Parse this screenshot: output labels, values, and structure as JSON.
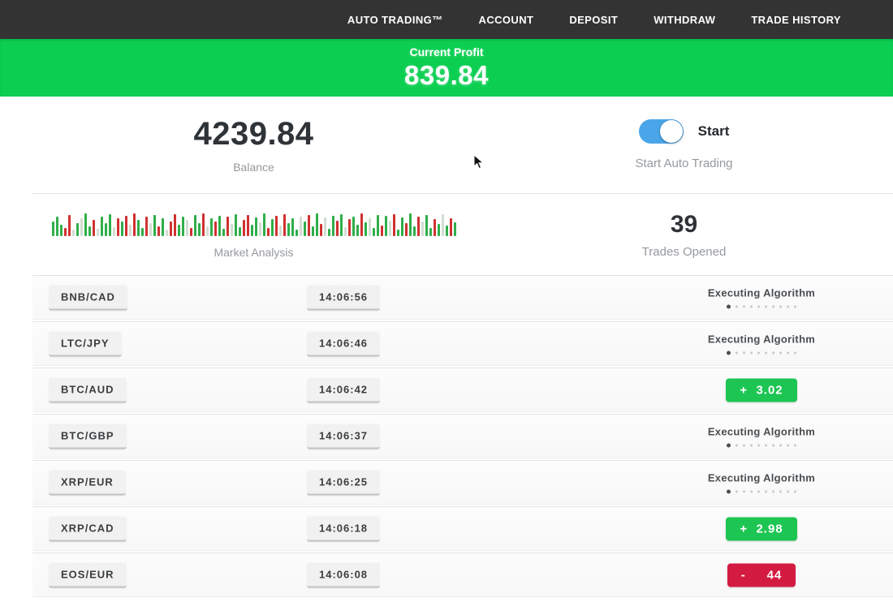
{
  "nav": {
    "items": [
      "AUTO TRADING™",
      "ACCOUNT",
      "DEPOSIT",
      "WITHDRAW",
      "TRADE HISTORY"
    ]
  },
  "profit_banner": {
    "label": "Current Profit",
    "value": "839.84"
  },
  "stats": {
    "balance": {
      "value": "4239.84",
      "label": "Balance"
    },
    "auto_trading": {
      "toggle_label": "Start",
      "label": "Start Auto Trading",
      "toggle_on": true
    },
    "trades_opened": {
      "value": "39",
      "label": "Trades Opened"
    }
  },
  "chart_data": {
    "type": "bar",
    "title": "Market Analysis",
    "xlabel": "",
    "ylabel": "",
    "axes_shown": false,
    "description": "decorative market ticker of thin green/red/pale volume bars",
    "colors": {
      "g": "#2fae4a",
      "r": "#cf3130",
      "p": "#d2ddd2"
    },
    "bars": [
      [
        18,
        "g"
      ],
      [
        24,
        "g"
      ],
      [
        14,
        "g"
      ],
      [
        10,
        "r"
      ],
      [
        26,
        "r"
      ],
      [
        8,
        "p"
      ],
      [
        16,
        "g"
      ],
      [
        22,
        "p"
      ],
      [
        28,
        "g"
      ],
      [
        12,
        "g"
      ],
      [
        20,
        "r"
      ],
      [
        9,
        "p"
      ],
      [
        24,
        "g"
      ],
      [
        16,
        "g"
      ],
      [
        27,
        "g"
      ],
      [
        11,
        "p"
      ],
      [
        22,
        "r"
      ],
      [
        18,
        "g"
      ],
      [
        25,
        "r"
      ],
      [
        14,
        "p"
      ],
      [
        28,
        "r"
      ],
      [
        20,
        "g"
      ],
      [
        10,
        "g"
      ],
      [
        24,
        "r"
      ],
      [
        16,
        "p"
      ],
      [
        26,
        "g"
      ],
      [
        12,
        "r"
      ],
      [
        22,
        "g"
      ],
      [
        8,
        "p"
      ],
      [
        18,
        "r"
      ],
      [
        27,
        "r"
      ],
      [
        14,
        "g"
      ],
      [
        24,
        "g"
      ],
      [
        20,
        "p"
      ],
      [
        10,
        "r"
      ],
      [
        26,
        "g"
      ],
      [
        16,
        "g"
      ],
      [
        28,
        "r"
      ],
      [
        12,
        "p"
      ],
      [
        22,
        "g"
      ],
      [
        18,
        "r"
      ],
      [
        25,
        "g"
      ],
      [
        9,
        "g"
      ],
      [
        24,
        "r"
      ],
      [
        15,
        "p"
      ],
      [
        27,
        "g"
      ],
      [
        11,
        "g"
      ],
      [
        20,
        "r"
      ],
      [
        26,
        "r"
      ],
      [
        14,
        "g"
      ],
      [
        23,
        "g"
      ],
      [
        17,
        "p"
      ],
      [
        28,
        "g"
      ],
      [
        10,
        "r"
      ],
      [
        21,
        "g"
      ],
      [
        25,
        "r"
      ],
      [
        13,
        "p"
      ],
      [
        27,
        "r"
      ],
      [
        16,
        "g"
      ],
      [
        22,
        "g"
      ],
      [
        8,
        "g"
      ],
      [
        24,
        "p"
      ],
      [
        18,
        "g"
      ],
      [
        26,
        "r"
      ],
      [
        12,
        "g"
      ],
      [
        28,
        "g"
      ],
      [
        15,
        "r"
      ],
      [
        23,
        "p"
      ],
      [
        9,
        "g"
      ],
      [
        25,
        "g"
      ],
      [
        19,
        "r"
      ],
      [
        27,
        "g"
      ],
      [
        11,
        "p"
      ],
      [
        21,
        "r"
      ],
      [
        24,
        "g"
      ],
      [
        14,
        "g"
      ],
      [
        28,
        "r"
      ],
      [
        17,
        "g"
      ],
      [
        22,
        "p"
      ],
      [
        10,
        "g"
      ],
      [
        26,
        "g"
      ],
      [
        13,
        "r"
      ],
      [
        25,
        "g"
      ],
      [
        19,
        "p"
      ],
      [
        27,
        "r"
      ],
      [
        8,
        "g"
      ],
      [
        23,
        "g"
      ],
      [
        16,
        "r"
      ],
      [
        28,
        "g"
      ],
      [
        12,
        "g"
      ],
      [
        24,
        "r"
      ],
      [
        18,
        "p"
      ],
      [
        26,
        "g"
      ],
      [
        10,
        "g"
      ],
      [
        21,
        "r"
      ],
      [
        15,
        "g"
      ],
      [
        27,
        "p"
      ],
      [
        13,
        "g"
      ],
      [
        22,
        "r"
      ],
      [
        17,
        "g"
      ]
    ]
  },
  "trades": {
    "executing_label": "Executing Algorithm",
    "rows": [
      {
        "pair": "BNB/CAD",
        "time": "14:06:56",
        "status": "executing",
        "result": ""
      },
      {
        "pair": "LTC/JPY",
        "time": "14:06:46",
        "status": "executing",
        "result": ""
      },
      {
        "pair": "BTC/AUD",
        "time": "14:06:42",
        "status": "profit",
        "result": "+  3.02"
      },
      {
        "pair": "BTC/GBP",
        "time": "14:06:37",
        "status": "executing",
        "result": ""
      },
      {
        "pair": "XRP/EUR",
        "time": "14:06:25",
        "status": "executing",
        "result": ""
      },
      {
        "pair": "XRP/CAD",
        "time": "14:06:18",
        "status": "profit",
        "result": "+  2.98"
      },
      {
        "pair": "EOS/EUR",
        "time": "14:06:08",
        "status": "loss",
        "result": "-     44"
      }
    ]
  },
  "colors": {
    "nav_bg": "#333333",
    "banner_green": "#0ccf52",
    "profit_green": "#1dc553",
    "loss_red": "#d31b42",
    "toggle_blue": "#4aa6e8"
  }
}
